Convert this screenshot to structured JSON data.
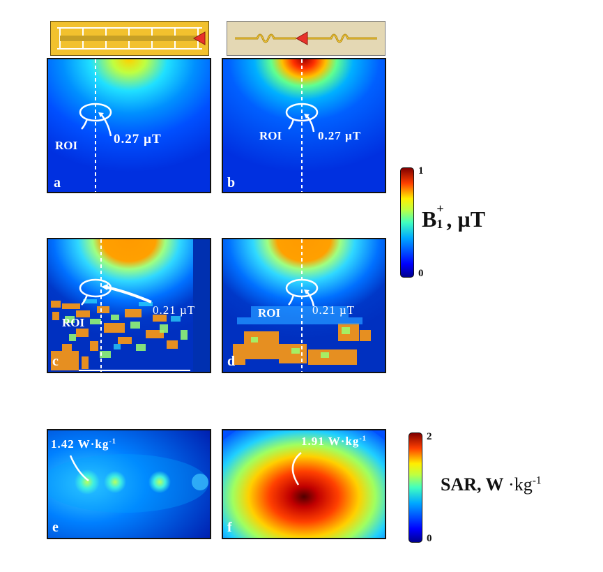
{
  "panels": {
    "a": {
      "label": "a",
      "roi": "ROI",
      "value": "0.27 µT"
    },
    "b": {
      "label": "b",
      "roi": "ROI",
      "value": "0.27 µT"
    },
    "c": {
      "label": "c",
      "roi": "ROI",
      "value": "0.21 µT"
    },
    "d": {
      "label": "d",
      "roi": "ROI",
      "value": "0.21 µT"
    },
    "e": {
      "label": "e",
      "value": "1.42 W·kg"
    },
    "f": {
      "label": "f",
      "value": "1.91 W·kg"
    }
  },
  "sar_value_exponent": "-1",
  "colorbar_b1": {
    "max": "1",
    "min": "0",
    "symbol": "B",
    "sub": "1",
    "sup": "+",
    "unit": ", µT"
  },
  "colorbar_sar": {
    "max": "2",
    "min": "0",
    "label": "SAR, W",
    "unit_main": "·kg",
    "unit_exp": "-1"
  },
  "colors": {
    "jet": [
      "#00008f",
      "#0000ff",
      "#0080ff",
      "#00ffff",
      "#80ff80",
      "#ffff00",
      "#ff8000",
      "#ff0000",
      "#800000"
    ],
    "coil_a_bg": "#f2c12e",
    "coil_b_bg": "#e4d8b4",
    "arrow": "#e8322a"
  }
}
